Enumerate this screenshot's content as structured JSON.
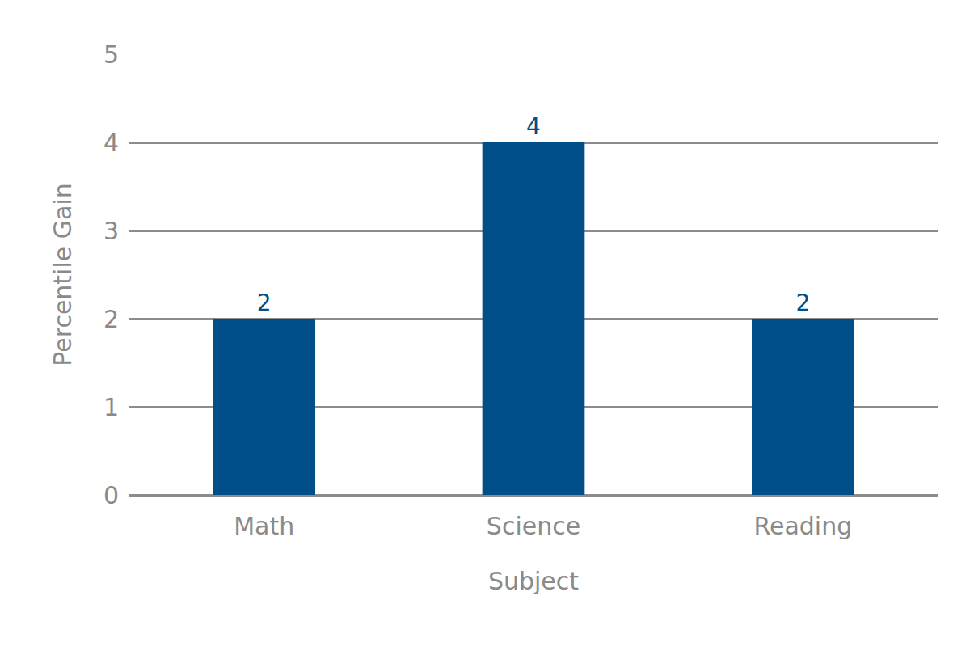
{
  "chart_data": {
    "type": "bar",
    "x_label": "Subject",
    "y_label": "Percentile Gain",
    "categories": [
      "Math",
      "Science",
      "Reading"
    ],
    "values": [
      2,
      4,
      2
    ],
    "color": "#004f88",
    "ylim": [
      0,
      5
    ],
    "yticks": [
      0,
      1,
      2,
      3,
      4,
      5
    ],
    "grid": true,
    "data_labels": true
  }
}
